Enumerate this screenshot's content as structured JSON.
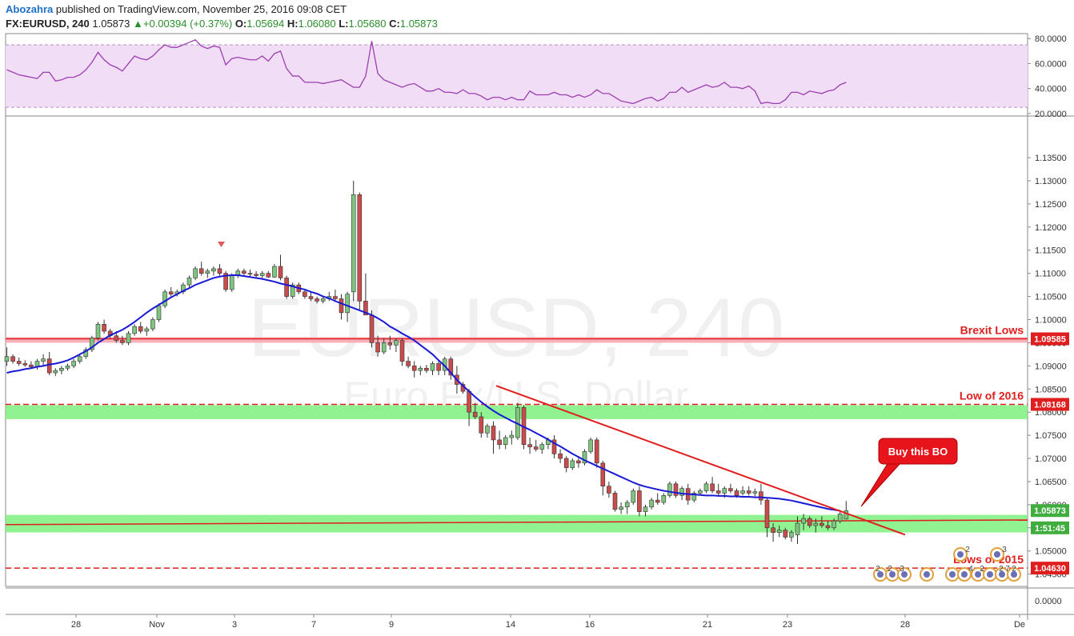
{
  "header": {
    "author": "Abozahra",
    "published": "published on TradingView.com, November 25, 2016 09:08 CET",
    "symbol": "FX:EURUSD, 240",
    "last": "1.05873",
    "change_arrow": "▲",
    "change": "+0.00394 (+0.37%)",
    "o_label": "O:",
    "o": "1.05694",
    "h_label": "H:",
    "h": "1.06080",
    "l_label": "L:",
    "l": "1.05680",
    "c_label": "C:",
    "c": "1.05873"
  },
  "watermark": {
    "main": "EURUSD, 240",
    "sub": "Euro Fx/U.S. Dollar"
  },
  "colors": {
    "up": "#7fc47f",
    "down": "#c94b4b",
    "ma": "#1a1ad6",
    "trend": "#e01e1e",
    "zone_green": "#7cf07c",
    "zone_red": "#f7a9b3",
    "rsi_fill": "#f1ddf6",
    "rsi_line": "#9c3fb0"
  },
  "chart_data": {
    "type": "candlestick",
    "x_ticks": [
      "28",
      "Nov",
      "3",
      "7",
      "9",
      "14",
      "16",
      "21",
      "23",
      "28",
      "De"
    ],
    "price_ticks": [
      "1.13500",
      "1.13000",
      "1.12500",
      "1.12000",
      "1.11500",
      "1.11000",
      "1.10500",
      "1.10000",
      "1.09500",
      "1.09000",
      "1.08500",
      "1.08000",
      "1.07500",
      "1.07000",
      "1.06500",
      "1.06000",
      "1.05500",
      "1.05000",
      "1.04500"
    ],
    "price_range": [
      1.042,
      1.144
    ],
    "rsi_ticks": [
      "80.0000",
      "60.0000",
      "40.0000",
      "20.0000"
    ],
    "rsi_range": [
      18,
      84
    ],
    "rsi_bounds": [
      75,
      25
    ],
    "volume_tick": "0.0000",
    "price_labels": [
      {
        "price": 1.09585,
        "text": "1.09585",
        "color": "#e01e1e"
      },
      {
        "price": 1.08168,
        "text": "1.08168",
        "color": "#e01e1e"
      },
      {
        "price": 1.05873,
        "text": "1.05873",
        "color": "#3fae3f"
      },
      {
        "price": 1.055,
        "text": "1:51:45",
        "color": "#3fae3f"
      },
      {
        "price": 1.0463,
        "text": "1.04630",
        "color": "#e01e1e"
      }
    ],
    "levels": [
      {
        "label": "Brexit Lows",
        "price": 1.09585
      },
      {
        "label": "Low of 2016",
        "price": 1.08168
      },
      {
        "label": "Lows of 2015",
        "price": 1.0463
      }
    ],
    "zones": [
      {
        "top": 1.0962,
        "bottom": 1.095,
        "color": "red"
      },
      {
        "top": 1.0815,
        "bottom": 1.0785,
        "color": "green"
      },
      {
        "top": 1.0578,
        "bottom": 1.054,
        "color": "green"
      }
    ],
    "annotation": "Buy this BO",
    "event_counts": [
      "2",
      "3",
      "2",
      "2",
      "3",
      "4",
      "2",
      "2",
      "7",
      "2"
    ],
    "candles": [
      [
        1.091,
        1.094,
        1.09,
        1.092
      ],
      [
        1.092,
        1.0925,
        1.0905,
        1.091
      ],
      [
        1.091,
        1.0918,
        1.09,
        1.0905
      ],
      [
        1.0905,
        1.0912,
        1.0898,
        1.0902
      ],
      [
        1.0902,
        1.091,
        1.0895,
        1.0898
      ],
      [
        1.0898,
        1.0915,
        1.0892,
        1.091
      ],
      [
        1.091,
        1.0925,
        1.09,
        1.0915
      ],
      [
        1.0915,
        1.093,
        1.088,
        1.0885
      ],
      [
        1.0885,
        1.0895,
        1.0878,
        1.089
      ],
      [
        1.089,
        1.09,
        1.0882,
        1.0895
      ],
      [
        1.0895,
        1.0905,
        1.089,
        1.09
      ],
      [
        1.09,
        1.0915,
        1.0895,
        1.091
      ],
      [
        1.091,
        1.0925,
        1.0905,
        1.092
      ],
      [
        1.092,
        1.094,
        1.0915,
        1.0935
      ],
      [
        1.0935,
        1.0965,
        1.093,
        1.096
      ],
      [
        1.096,
        1.0995,
        1.0955,
        1.099
      ],
      [
        1.099,
        1.1,
        1.097,
        1.0975
      ],
      [
        1.0975,
        1.098,
        1.096,
        1.0965
      ],
      [
        1.0965,
        1.0975,
        1.095,
        1.0955
      ],
      [
        1.0955,
        1.0965,
        1.0945,
        1.095
      ],
      [
        1.095,
        1.0975,
        1.0945,
        1.097
      ],
      [
        1.097,
        1.099,
        1.0965,
        1.0985
      ],
      [
        1.0985,
        1.0995,
        1.097,
        1.0975
      ],
      [
        1.0975,
        1.0985,
        1.0965,
        1.098
      ],
      [
        1.098,
        1.1005,
        1.0975,
        1.1
      ],
      [
        1.1,
        1.1035,
        1.0995,
        1.103
      ],
      [
        1.103,
        1.1065,
        1.1025,
        1.106
      ],
      [
        1.106,
        1.107,
        1.105,
        1.1055
      ],
      [
        1.1055,
        1.1065,
        1.105,
        1.106
      ],
      [
        1.106,
        1.108,
        1.1055,
        1.1075
      ],
      [
        1.1075,
        1.1095,
        1.107,
        1.109
      ],
      [
        1.109,
        1.1115,
        1.1085,
        1.111
      ],
      [
        1.111,
        1.1125,
        1.1095,
        1.11
      ],
      [
        1.11,
        1.111,
        1.109,
        1.1105
      ],
      [
        1.1105,
        1.1115,
        1.1095,
        1.111
      ],
      [
        1.111,
        1.112,
        1.1095,
        1.11
      ],
      [
        1.11,
        1.1105,
        1.106,
        1.1065
      ],
      [
        1.1065,
        1.11,
        1.106,
        1.1095
      ],
      [
        1.1095,
        1.111,
        1.109,
        1.1105
      ],
      [
        1.1105,
        1.111,
        1.1095,
        1.11
      ],
      [
        1.11,
        1.1108,
        1.1092,
        1.1098
      ],
      [
        1.1098,
        1.1105,
        1.109,
        1.1095
      ],
      [
        1.1095,
        1.1105,
        1.109,
        1.11
      ],
      [
        1.11,
        1.1105,
        1.109,
        1.1092
      ],
      [
        1.1092,
        1.112,
        1.109,
        1.1115
      ],
      [
        1.1115,
        1.114,
        1.1085,
        1.109
      ],
      [
        1.109,
        1.1095,
        1.1045,
        1.105
      ],
      [
        1.105,
        1.108,
        1.1045,
        1.1075
      ],
      [
        1.1075,
        1.108,
        1.1055,
        1.106
      ],
      [
        1.106,
        1.1065,
        1.1045,
        1.105
      ],
      [
        1.105,
        1.106,
        1.104,
        1.1045
      ],
      [
        1.1045,
        1.105,
        1.1035,
        1.104
      ],
      [
        1.104,
        1.105,
        1.1035,
        1.1045
      ],
      [
        1.1045,
        1.106,
        1.104,
        1.105
      ],
      [
        1.105,
        1.1065,
        1.104,
        1.1045
      ],
      [
        1.1045,
        1.1055,
        1.1,
        1.1015
      ],
      [
        1.1015,
        1.106,
        1.0995,
        1.1055
      ],
      [
        1.106,
        1.13,
        1.104,
        1.127
      ],
      [
        1.127,
        1.1275,
        1.102,
        1.104
      ],
      [
        1.104,
        1.11,
        1.101,
        1.101
      ],
      [
        1.101,
        1.102,
        1.094,
        1.095
      ],
      [
        1.095,
        1.0965,
        1.092,
        1.093
      ],
      [
        1.093,
        1.096,
        1.0925,
        1.095
      ],
      [
        1.095,
        1.0965,
        1.0935,
        1.0945
      ],
      [
        1.0945,
        1.096,
        1.093,
        1.0955
      ],
      [
        1.0955,
        1.096,
        1.09,
        1.091
      ],
      [
        1.091,
        1.092,
        1.0895,
        1.09
      ],
      [
        1.09,
        1.091,
        1.0875,
        1.089
      ],
      [
        1.089,
        1.09,
        1.088,
        1.0895
      ],
      [
        1.0895,
        1.0902,
        1.0885,
        1.089
      ],
      [
        1.089,
        1.091,
        1.088,
        1.0905
      ],
      [
        1.0905,
        1.0912,
        1.088,
        1.089
      ],
      [
        1.089,
        1.092,
        1.088,
        1.0915
      ],
      [
        1.0915,
        1.092,
        1.087,
        1.088
      ],
      [
        1.088,
        1.09,
        1.084,
        1.086
      ],
      [
        1.086,
        1.0865,
        1.084,
        1.0845
      ],
      [
        1.0845,
        1.085,
        1.077,
        1.08
      ],
      [
        1.08,
        1.082,
        1.0785,
        1.079
      ],
      [
        1.079,
        1.08,
        1.0745,
        1.0755
      ],
      [
        1.0755,
        1.0775,
        1.0745,
        1.077
      ],
      [
        1.077,
        1.078,
        1.071,
        1.074
      ],
      [
        1.074,
        1.076,
        1.072,
        1.073
      ],
      [
        1.073,
        1.075,
        1.072,
        1.0745
      ],
      [
        1.0745,
        1.076,
        1.073,
        1.075
      ],
      [
        1.0745,
        1.082,
        1.074,
        1.081
      ],
      [
        1.081,
        1.0815,
        1.072,
        1.073
      ],
      [
        1.073,
        1.0745,
        1.071,
        1.0725
      ],
      [
        1.0725,
        1.074,
        1.0715,
        1.072
      ],
      [
        1.072,
        1.0735,
        1.071,
        1.073
      ],
      [
        1.073,
        1.0745,
        1.072,
        1.074
      ],
      [
        1.074,
        1.075,
        1.07,
        1.071
      ],
      [
        1.071,
        1.072,
        1.069,
        1.07
      ],
      [
        1.07,
        1.0705,
        1.067,
        1.068
      ],
      [
        1.068,
        1.07,
        1.0675,
        1.0695
      ],
      [
        1.0695,
        1.0705,
        1.068,
        1.069
      ],
      [
        1.069,
        1.072,
        1.0685,
        1.0715
      ],
      [
        1.0715,
        1.0745,
        1.071,
        1.074
      ],
      [
        1.074,
        1.0745,
        1.068,
        1.069
      ],
      [
        1.069,
        1.0695,
        1.062,
        1.064
      ],
      [
        1.064,
        1.065,
        1.0615,
        1.0625
      ],
      [
        1.0625,
        1.063,
        1.0585,
        1.059
      ],
      [
        1.059,
        1.0605,
        1.058,
        1.0595
      ],
      [
        1.0595,
        1.061,
        1.058,
        1.0605
      ],
      [
        1.0605,
        1.0635,
        1.06,
        1.063
      ],
      [
        1.063,
        1.064,
        1.0575,
        1.0585
      ],
      [
        1.0585,
        1.06,
        1.0575,
        1.0595
      ],
      [
        1.0595,
        1.0615,
        1.059,
        1.061
      ],
      [
        1.061,
        1.0625,
        1.06,
        1.0605
      ],
      [
        1.0605,
        1.0625,
        1.06,
        1.062
      ],
      [
        1.062,
        1.065,
        1.0615,
        1.0645
      ],
      [
        1.0645,
        1.065,
        1.0615,
        1.062
      ],
      [
        1.062,
        1.064,
        1.061,
        1.0635
      ],
      [
        1.0635,
        1.0645,
        1.06,
        1.061
      ],
      [
        1.061,
        1.063,
        1.0605,
        1.0625
      ],
      [
        1.0625,
        1.0635,
        1.062,
        1.063
      ],
      [
        1.063,
        1.065,
        1.0625,
        1.0645
      ],
      [
        1.0645,
        1.066,
        1.0625,
        1.063
      ],
      [
        1.063,
        1.0645,
        1.062,
        1.0625
      ],
      [
        1.0625,
        1.064,
        1.0615,
        1.0635
      ],
      [
        1.0635,
        1.0645,
        1.0625,
        1.063
      ],
      [
        1.063,
        1.0635,
        1.0615,
        1.062
      ],
      [
        1.0625,
        1.064,
        1.062,
        1.063
      ],
      [
        1.063,
        1.064,
        1.062,
        1.0625
      ],
      [
        1.0625,
        1.0635,
        1.0618,
        1.0628
      ],
      [
        1.0628,
        1.0645,
        1.06,
        1.061
      ],
      [
        1.061,
        1.0615,
        1.053,
        1.055
      ],
      [
        1.055,
        1.056,
        1.052,
        1.054
      ],
      [
        1.054,
        1.0555,
        1.053,
        1.0545
      ],
      [
        1.0545,
        1.055,
        1.0525,
        1.053
      ],
      [
        1.053,
        1.0545,
        1.052,
        1.054
      ],
      [
        1.0535,
        1.0575,
        1.0515,
        1.056
      ],
      [
        1.056,
        1.058,
        1.0545,
        1.057
      ],
      [
        1.057,
        1.0575,
        1.055,
        1.0555
      ],
      [
        1.0555,
        1.057,
        1.054,
        1.056
      ],
      [
        1.056,
        1.0575,
        1.055,
        1.0555
      ],
      [
        1.0555,
        1.0565,
        1.0545,
        1.055
      ],
      [
        1.055,
        1.057,
        1.0545,
        1.0565
      ],
      [
        1.0565,
        1.0585,
        1.056,
        1.058
      ],
      [
        1.0569,
        1.0608,
        1.0568,
        1.0587
      ]
    ],
    "ma": [
      1.0885,
      1.0888,
      1.089,
      1.0893,
      1.0895,
      1.0898,
      1.09,
      1.0903,
      1.0905,
      1.0908,
      1.0912,
      1.0918,
      1.0925,
      1.0932,
      1.094,
      1.095,
      1.0958,
      1.0966,
      1.0972,
      1.0978,
      1.0986,
      1.0995,
      1.1005,
      1.1015,
      1.1024,
      1.1032,
      1.104,
      1.1048,
      1.1055,
      1.1062,
      1.1068,
      1.1075,
      1.108,
      1.1085,
      1.109,
      1.1093,
      1.1095,
      1.1096,
      1.1096,
      1.1094,
      1.1092,
      1.109,
      1.1088,
      1.1085,
      1.1082,
      1.1078,
      1.1075,
      1.1072,
      1.1068,
      1.1065,
      1.106,
      1.1056,
      1.105,
      1.1046,
      1.104,
      1.1035,
      1.103,
      1.1025,
      1.102,
      1.1015,
      1.101,
      1.1003,
      1.0995,
      1.0985,
      1.0978,
      1.097,
      1.0963,
      1.0955,
      1.0945,
      1.0935,
      1.0925,
      1.0912,
      1.09,
      1.0885,
      1.087,
      1.0857,
      1.0845,
      1.0833,
      1.0822,
      1.0812,
      1.0803,
      1.0795,
      1.0788,
      1.0781,
      1.0775,
      1.0768,
      1.0762,
      1.0755,
      1.0748,
      1.0741,
      1.0733,
      1.0726,
      1.0718,
      1.071,
      1.0703,
      1.0696,
      1.069,
      1.0684,
      1.0678,
      1.0672,
      1.0666,
      1.066,
      1.0654,
      1.0648,
      1.0643,
      1.0639,
      1.0636,
      1.0633,
      1.063,
      1.0628,
      1.0626,
      1.0624,
      1.0623,
      1.0622,
      1.0621,
      1.062,
      1.062,
      1.0619,
      1.0619,
      1.0618,
      1.0618,
      1.0617,
      1.0617,
      1.0616,
      1.0616,
      1.0615,
      1.0614,
      1.0613,
      1.0611,
      1.0609,
      1.0606,
      1.0603,
      1.06,
      1.0597,
      1.0594,
      1.0591,
      1.0589,
      1.0587
    ],
    "rsi": [
      55,
      53,
      51,
      50,
      49,
      48,
      53,
      53,
      46,
      47,
      49,
      49,
      51,
      55,
      61,
      69,
      63,
      59,
      57,
      54,
      60,
      66,
      64,
      63,
      66,
      71,
      75,
      73,
      73,
      75,
      77,
      79,
      74,
      72,
      74,
      73,
      59,
      64,
      65,
      64,
      63,
      63,
      66,
      62,
      68,
      70,
      56,
      50,
      50,
      45,
      45,
      45,
      44,
      45,
      46,
      47,
      44,
      41,
      41,
      50,
      78,
      52,
      47,
      45,
      43,
      41,
      43,
      44,
      41,
      38,
      38,
      40,
      37,
      37,
      36,
      39,
      36,
      36,
      34,
      31,
      33,
      33,
      31,
      33,
      31,
      31,
      38,
      35,
      35,
      35,
      37,
      35,
      35,
      33,
      35,
      33,
      35,
      39,
      36,
      36,
      33,
      30,
      29,
      28,
      30,
      32,
      33,
      30,
      32,
      37,
      37,
      41,
      37,
      39,
      41,
      43,
      41,
      42,
      45,
      41,
      41,
      40,
      42,
      38,
      28,
      29,
      28,
      28,
      31,
      37,
      37,
      35,
      38,
      37,
      36,
      38,
      39,
      43,
      45
    ]
  }
}
